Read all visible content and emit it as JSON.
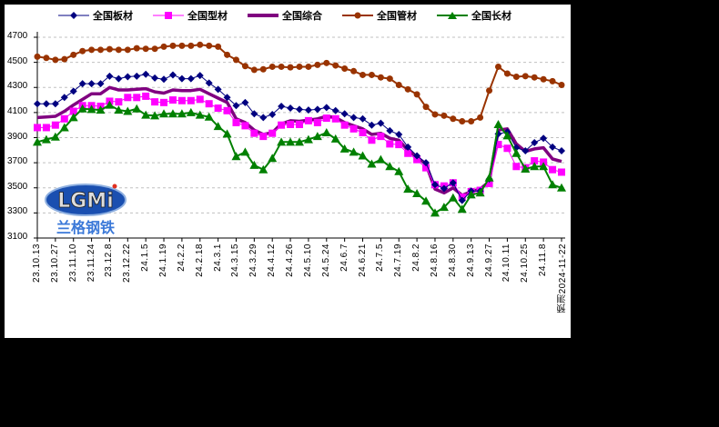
{
  "chart_data": {
    "type": "line",
    "title": "",
    "xlabel": "",
    "ylabel": "",
    "ylim": [
      3100,
      4800
    ],
    "yticks": [
      3100,
      3300,
      3500,
      3700,
      3900,
      4100,
      4300,
      4500,
      4700
    ],
    "grid": "horizontal dashed",
    "legend_position": "top",
    "x_tick_labels": [
      "23.10.13",
      "23.10.27",
      "23.11.10",
      "23.11.24",
      "23.12.8",
      "23.12.22",
      "24.1.5",
      "24.1.19",
      "24.2.2",
      "24.2.18",
      "24.3.1",
      "24.3.15",
      "24.3.29",
      "24.4.12",
      "24.4.26",
      "24.5.10",
      "24.5.24",
      "24.6.7",
      "24.6.21",
      "24.7.5",
      "24.7.19",
      "24.8.2",
      "24.8.16",
      "24.8.30",
      "24.9.13",
      "24.9.27",
      "24.10.11",
      "24.10.25",
      "24.11.8",
      "预测2024-11-22"
    ],
    "point_count": 59,
    "series": [
      {
        "name": "全国板材",
        "color": "#000080",
        "marker": "diamond",
        "width": 1,
        "values": [
          4170,
          4170,
          4170,
          4220,
          4270,
          4330,
          4330,
          4330,
          4390,
          4370,
          4385,
          4390,
          4405,
          4375,
          4365,
          4400,
          4370,
          4370,
          4395,
          4335,
          4285,
          4220,
          4155,
          4180,
          4090,
          4060,
          4085,
          4150,
          4135,
          4125,
          4120,
          4125,
          4140,
          4115,
          4090,
          4060,
          4050,
          4000,
          4015,
          3955,
          3925,
          3825,
          3755,
          3700,
          3525,
          3495,
          3540,
          3400,
          3475,
          3475,
          3570,
          3930,
          3945,
          3820,
          3795,
          3860,
          3895,
          3825,
          3795
        ]
      },
      {
        "name": "全国型材",
        "color": "#FF00FF",
        "marker": "square",
        "width": 1,
        "values": [
          3980,
          3980,
          4000,
          4050,
          4110,
          4155,
          4155,
          4150,
          4190,
          4185,
          4220,
          4220,
          4230,
          4185,
          4180,
          4200,
          4195,
          4195,
          4205,
          4170,
          4135,
          4115,
          4020,
          3995,
          3935,
          3910,
          3935,
          4000,
          4005,
          4005,
          4035,
          4020,
          4055,
          4050,
          4000,
          3970,
          3940,
          3880,
          3910,
          3850,
          3845,
          3775,
          3725,
          3660,
          3525,
          3515,
          3540,
          3425,
          3470,
          3480,
          3535,
          3845,
          3815,
          3670,
          3660,
          3715,
          3705,
          3645,
          3625
        ]
      },
      {
        "name": "全国综合",
        "color": "#800080",
        "marker": "none",
        "width": 3.5,
        "values": [
          4060,
          4065,
          4070,
          4110,
          4160,
          4205,
          4250,
          4250,
          4300,
          4280,
          4280,
          4285,
          4290,
          4265,
          4255,
          4280,
          4275,
          4275,
          4285,
          4250,
          4215,
          4180,
          4050,
          4020,
          3960,
          3925,
          3940,
          4010,
          4035,
          4030,
          4040,
          4050,
          4070,
          4060,
          4020,
          3995,
          3970,
          3925,
          3935,
          3895,
          3880,
          3800,
          3745,
          3690,
          3490,
          3460,
          3500,
          3440,
          3470,
          3490,
          3550,
          3960,
          3970,
          3850,
          3790,
          3810,
          3820,
          3730,
          3710
        ]
      },
      {
        "name": "全国管材",
        "color": "#993300",
        "marker": "circle",
        "width": 2,
        "values": [
          4545,
          4535,
          4520,
          4525,
          4560,
          4590,
          4600,
          4600,
          4605,
          4600,
          4600,
          4612,
          4608,
          4608,
          4625,
          4632,
          4632,
          4632,
          4640,
          4632,
          4625,
          4560,
          4520,
          4470,
          4440,
          4445,
          4465,
          4465,
          4460,
          4465,
          4465,
          4480,
          4495,
          4475,
          4450,
          4430,
          4400,
          4400,
          4380,
          4370,
          4320,
          4285,
          4245,
          4145,
          4085,
          4075,
          4050,
          4030,
          4030,
          4060,
          4275,
          4465,
          4410,
          4385,
          4390,
          4380,
          4365,
          4350,
          4320
        ]
      },
      {
        "name": "全国长材",
        "color": "#008000",
        "marker": "triangle",
        "width": 2,
        "values": [
          3865,
          3885,
          3905,
          3980,
          4060,
          4130,
          4125,
          4120,
          4160,
          4120,
          4110,
          4130,
          4080,
          4075,
          4090,
          4090,
          4090,
          4100,
          4080,
          4065,
          3990,
          3930,
          3750,
          3785,
          3680,
          3645,
          3735,
          3865,
          3865,
          3865,
          3885,
          3910,
          3940,
          3890,
          3810,
          3785,
          3755,
          3690,
          3725,
          3670,
          3630,
          3490,
          3455,
          3395,
          3300,
          3345,
          3420,
          3330,
          3445,
          3460,
          3580,
          4005,
          3915,
          3775,
          3650,
          3670,
          3670,
          3525,
          3500
        ]
      }
    ]
  },
  "legend": {
    "items": [
      "全国板材",
      "全国型材",
      "全国综合",
      "全国管材",
      "全国长材"
    ]
  },
  "logo": {
    "text": "LGMi",
    "subtext": "兰格钢铁"
  }
}
